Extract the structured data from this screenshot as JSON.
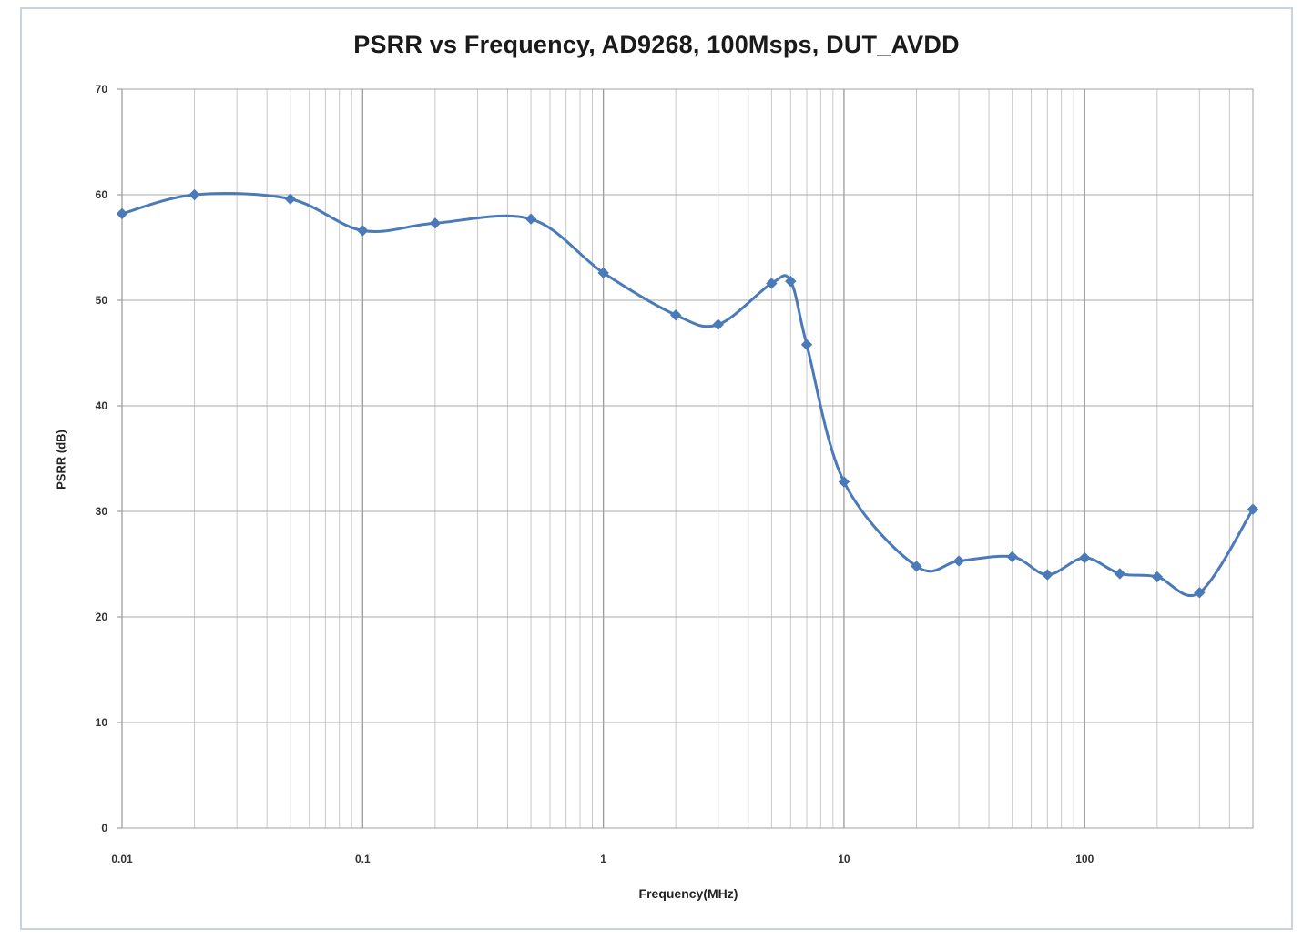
{
  "chart_data": {
    "type": "line",
    "title": "PSRR vs Frequency,  AD9268,  100Msps,  DUT_AVDD",
    "xlabel": "Frequency(MHz)",
    "ylabel": "PSRR (dB)",
    "x_scale": "log",
    "xlim": [
      0.01,
      500
    ],
    "ylim": [
      0,
      70
    ],
    "x_ticks": [
      "0.01",
      "0.1",
      "1",
      "10",
      "100"
    ],
    "y_ticks": [
      "0",
      "10",
      "20",
      "30",
      "40",
      "50",
      "60",
      "70"
    ],
    "grid": true,
    "legend": "none",
    "line_color": "#4a7ab8",
    "series": [
      {
        "x": [
          0.01,
          0.02,
          0.05,
          0.1,
          0.2,
          0.5,
          1,
          2,
          3,
          5,
          6,
          7,
          10,
          20,
          30,
          50,
          70,
          100,
          140,
          200,
          300,
          500
        ],
        "y": [
          58.2,
          60.0,
          59.6,
          56.6,
          57.3,
          57.7,
          52.6,
          48.6,
          47.7,
          51.6,
          51.8,
          45.8,
          32.8,
          24.8,
          25.3,
          25.7,
          24.0,
          25.6,
          24.1,
          23.8,
          22.3,
          30.2
        ]
      }
    ]
  }
}
